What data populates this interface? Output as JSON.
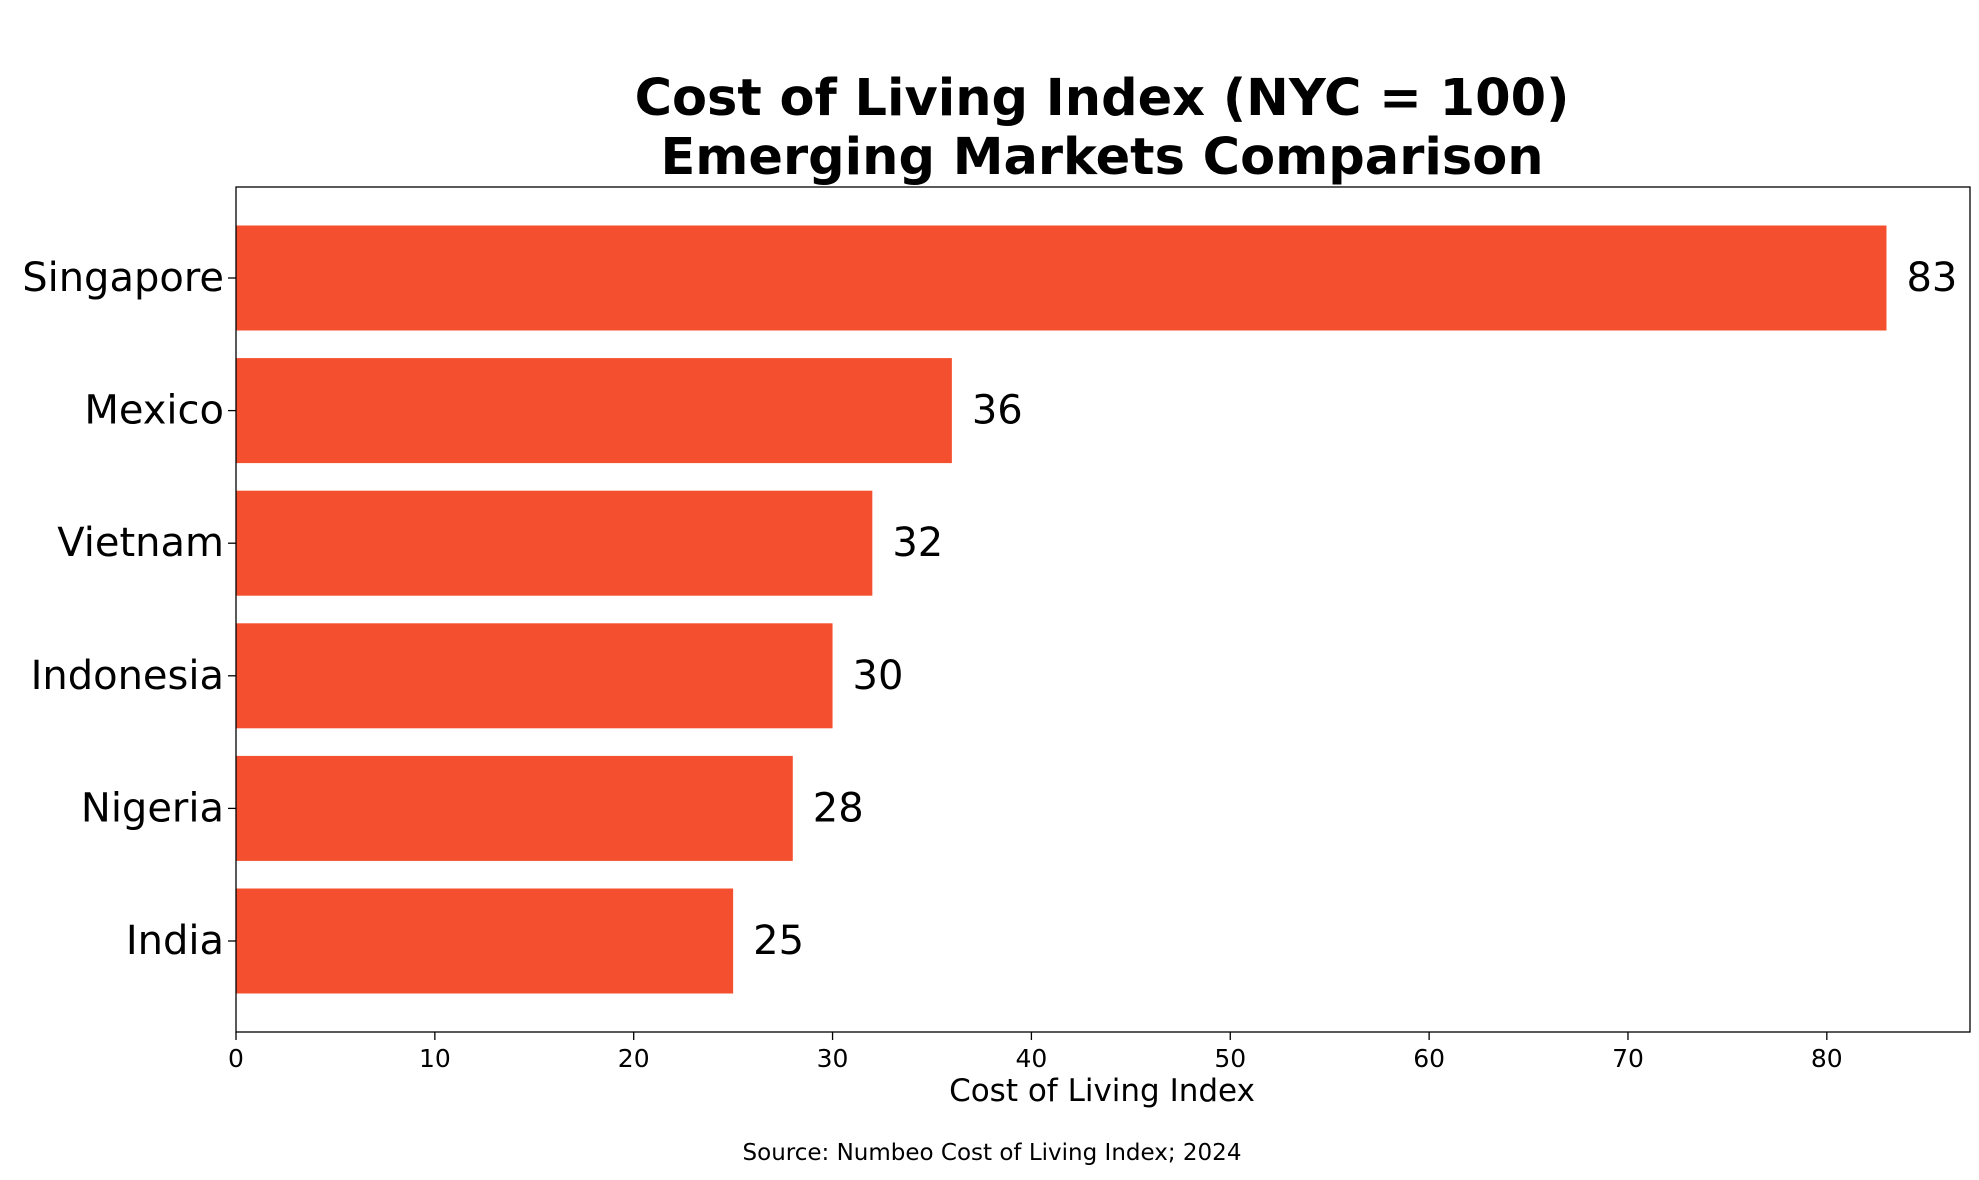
{
  "chart_data": {
    "type": "bar",
    "orientation": "horizontal",
    "title": "Cost of Living Index (NYC = 100)",
    "subtitle": "Emerging Markets Comparison",
    "categories": [
      "Singapore",
      "Mexico",
      "Vietnam",
      "Indonesia",
      "Nigeria",
      "India"
    ],
    "values": [
      83,
      36,
      32,
      30,
      28,
      25
    ],
    "data_labels": [
      "83",
      "36",
      "32",
      "30",
      "28",
      "25"
    ],
    "xlabel": "Cost of Living Index",
    "ylabel": "",
    "xlim": [
      0,
      87.2
    ],
    "xticks": [
      0,
      10,
      20,
      30,
      40,
      50,
      60,
      70,
      80
    ],
    "xtick_labels": [
      "0",
      "10",
      "20",
      "30",
      "40",
      "50",
      "60",
      "70",
      "80"
    ],
    "bar_color": "#f44f2e",
    "grid": false,
    "legend": "none"
  },
  "footer": {
    "source": "Source: Numbeo Cost of Living Index; 2024"
  }
}
